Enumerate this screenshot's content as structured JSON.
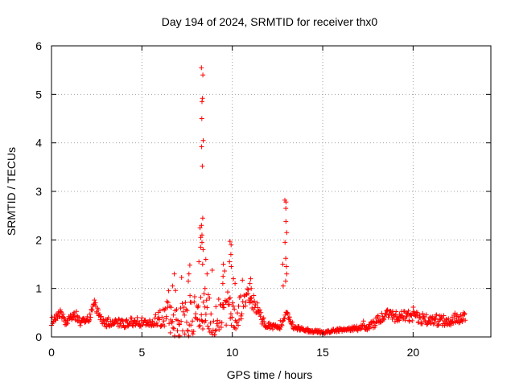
{
  "chart_data": {
    "type": "scatter",
    "title": "Day 194 of 2024, SRMTID for receiver thx0",
    "xlabel": "GPS time / hours",
    "ylabel": "SRMTID / TECUs",
    "xlim": [
      0,
      24.3
    ],
    "ylim": [
      0,
      6
    ],
    "xticks": [
      0,
      5,
      10,
      15,
      20
    ],
    "yticks": [
      0,
      1,
      2,
      3,
      4,
      5,
      6
    ],
    "xtick_labels": [
      "0",
      "5",
      "10",
      "15",
      "20"
    ],
    "ytick_labels": [
      "0",
      "1",
      "2",
      "3",
      "4",
      "5",
      "6"
    ],
    "grid": true,
    "marker": "+",
    "series": [
      {
        "name": "SRMTID",
        "color": "#ff0000",
        "baseline": [
          [
            0.0,
            0.32
          ],
          [
            0.3,
            0.42
          ],
          [
            0.5,
            0.5
          ],
          [
            0.8,
            0.28
          ],
          [
            1.2,
            0.45
          ],
          [
            1.6,
            0.3
          ],
          [
            2.0,
            0.34
          ],
          [
            2.4,
            0.68
          ],
          [
            2.7,
            0.4
          ],
          [
            3.0,
            0.28
          ],
          [
            3.5,
            0.3
          ],
          [
            4.0,
            0.26
          ],
          [
            4.4,
            0.32
          ],
          [
            5.0,
            0.3
          ],
          [
            5.5,
            0.3
          ],
          [
            6.0,
            0.3
          ],
          [
            6.4,
            0.5
          ],
          [
            6.8,
            0.25
          ],
          [
            7.2,
            0.35
          ],
          [
            7.6,
            0.45
          ],
          [
            8.0,
            0.4
          ],
          [
            8.5,
            0.55
          ],
          [
            9.0,
            0.35
          ],
          [
            9.4,
            0.45
          ],
          [
            9.8,
            0.6
          ],
          [
            10.2,
            0.3
          ],
          [
            10.6,
            0.75
          ],
          [
            11.0,
            0.8
          ],
          [
            11.4,
            0.55
          ],
          [
            11.8,
            0.25
          ],
          [
            12.2,
            0.22
          ],
          [
            12.7,
            0.2
          ],
          [
            13.0,
            0.5
          ],
          [
            13.4,
            0.2
          ],
          [
            14.0,
            0.14
          ],
          [
            14.5,
            0.12
          ],
          [
            15.0,
            0.09
          ],
          [
            15.5,
            0.12
          ],
          [
            16.0,
            0.15
          ],
          [
            16.5,
            0.17
          ],
          [
            17.0,
            0.18
          ],
          [
            17.5,
            0.22
          ],
          [
            18.0,
            0.32
          ],
          [
            18.5,
            0.48
          ],
          [
            19.0,
            0.42
          ],
          [
            19.5,
            0.44
          ],
          [
            20.0,
            0.42
          ],
          [
            20.5,
            0.35
          ],
          [
            21.0,
            0.36
          ],
          [
            21.5,
            0.34
          ],
          [
            22.0,
            0.33
          ],
          [
            22.5,
            0.38
          ],
          [
            22.9,
            0.4
          ]
        ],
        "spread": [
          [
            0.0,
            0.08
          ],
          [
            2.0,
            0.08
          ],
          [
            6.0,
            0.1
          ],
          [
            6.5,
            0.3
          ],
          [
            7.5,
            0.45
          ],
          [
            9.0,
            0.4
          ],
          [
            10.0,
            0.35
          ],
          [
            11.0,
            0.2
          ],
          [
            12.0,
            0.06
          ],
          [
            13.5,
            0.05
          ],
          [
            15.0,
            0.03
          ],
          [
            17.0,
            0.05
          ],
          [
            18.0,
            0.1
          ],
          [
            21.0,
            0.12
          ],
          [
            22.9,
            0.1
          ]
        ],
        "peaks": [
          {
            "x": 8.35,
            "values": [
              5.55,
              5.4,
              4.92,
              4.85,
              4.5,
              4.05,
              3.92,
              3.52,
              2.45,
              2.3,
              2.1,
              1.95,
              1.8,
              1.5
            ]
          },
          {
            "x": 8.2,
            "values": [
              2.25,
              2.05,
              1.85,
              1.55
            ]
          },
          {
            "x": 8.55,
            "values": [
              1.6,
              1.3,
              1.0
            ]
          },
          {
            "x": 9.9,
            "values": [
              1.97,
              1.9,
              1.7,
              1.55,
              1.45
            ]
          },
          {
            "x": 9.5,
            "values": [
              1.5,
              1.25,
              1.1
            ]
          },
          {
            "x": 10.1,
            "values": [
              1.2,
              1.1
            ]
          },
          {
            "x": 7.6,
            "values": [
              1.48,
              1.3,
              1.15
            ]
          },
          {
            "x": 6.75,
            "values": [
              1.3,
              1.05
            ]
          },
          {
            "x": 11.0,
            "values": [
              1.2,
              1.1,
              1.0
            ]
          },
          {
            "x": 12.95,
            "values": [
              2.82,
              2.78,
              2.65,
              2.38,
              2.15,
              1.95,
              1.62,
              1.45,
              1.3,
              1.15
            ]
          },
          {
            "x": 12.85,
            "values": [
              1.5,
              1.05
            ]
          }
        ]
      }
    ]
  }
}
